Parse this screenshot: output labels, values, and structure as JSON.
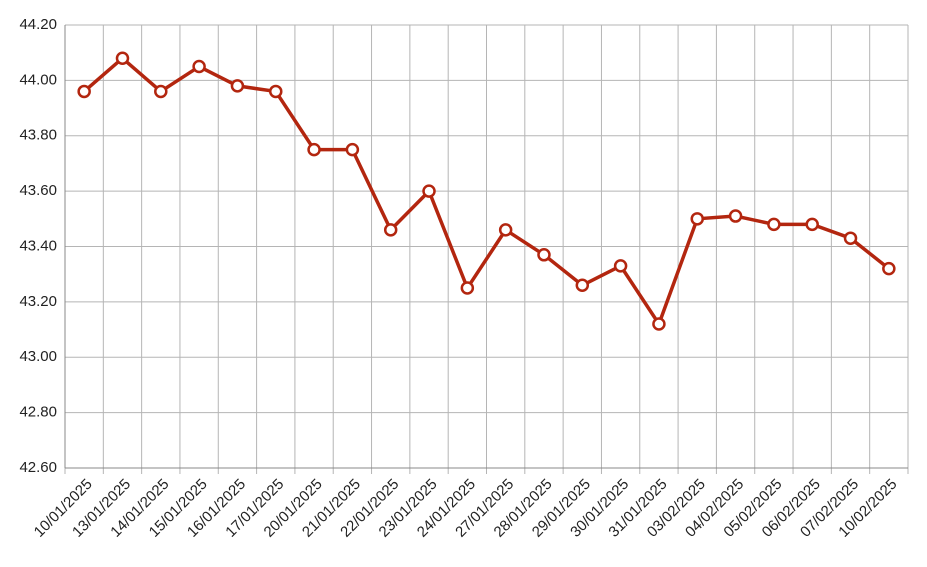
{
  "chart_data": {
    "type": "line",
    "categories": [
      "10/01/2025",
      "13/01/2025",
      "14/01/2025",
      "15/01/2025",
      "16/01/2025",
      "17/01/2025",
      "20/01/2025",
      "21/01/2025",
      "22/01/2025",
      "23/01/2025",
      "24/01/2025",
      "27/01/2025",
      "28/01/2025",
      "29/01/2025",
      "30/01/2025",
      "31/01/2025",
      "03/02/2025",
      "04/02/2025",
      "05/02/2025",
      "06/02/2025",
      "07/02/2025",
      "10/02/2025"
    ],
    "series": [
      {
        "color": "#b3260f",
        "values": [
          43.96,
          44.08,
          43.96,
          44.05,
          43.98,
          43.96,
          43.75,
          43.75,
          43.46,
          43.6,
          43.25,
          43.46,
          43.37,
          43.26,
          43.33,
          43.12,
          43.5,
          43.51,
          43.48,
          43.48,
          43.43,
          43.32
        ]
      }
    ],
    "ylim": [
      42.6,
      44.2
    ],
    "yticks": [
      {
        "value": 42.6,
        "label": "42.60"
      },
      {
        "value": 42.8,
        "label": "42.80"
      },
      {
        "value": 43.0,
        "label": "43.00"
      },
      {
        "value": 43.2,
        "label": "43.20"
      },
      {
        "value": 43.4,
        "label": "43.40"
      },
      {
        "value": 43.6,
        "label": "43.60"
      },
      {
        "value": 43.8,
        "label": "43.80"
      },
      {
        "value": 44.0,
        "label": "44.00"
      },
      {
        "value": 44.2,
        "label": "44.20"
      }
    ],
    "grid": true
  }
}
